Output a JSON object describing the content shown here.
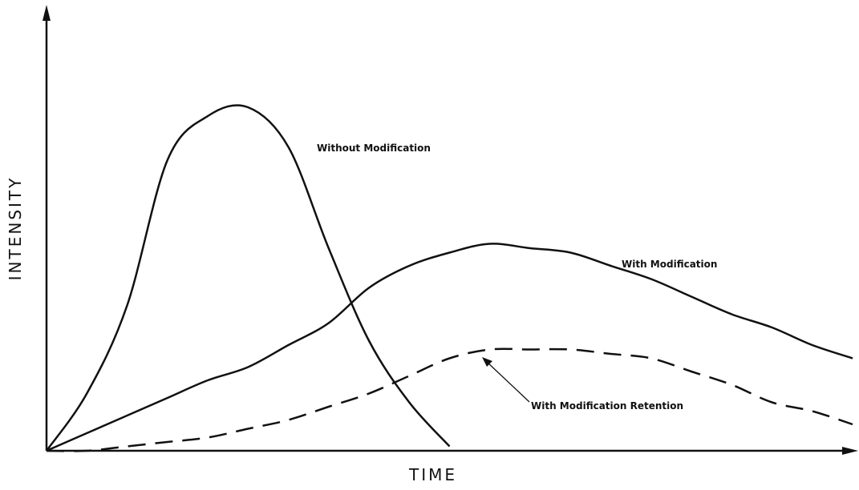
{
  "chart_data": {
    "type": "line",
    "xlabel": "TIME",
    "ylabel": "INTENSITY",
    "x": [
      0,
      5,
      10,
      15,
      20,
      25,
      30,
      35,
      40,
      45,
      50,
      55,
      60,
      65,
      70,
      75,
      80,
      85,
      90,
      95,
      100
    ],
    "xlim": [
      0,
      100
    ],
    "ylim": [
      0,
      100
    ],
    "series": [
      {
        "name": "Without Modification",
        "color": "#111111",
        "dashed": false,
        "values": [
          0,
          13,
          33,
          66,
          76,
          78,
          69,
          46,
          25,
          11,
          1,
          null,
          null,
          null,
          null,
          null,
          null,
          null,
          null,
          null,
          null
        ]
      },
      {
        "name": "With Modification",
        "color": "#111111",
        "dashed": false,
        "values": [
          0,
          4,
          8,
          12,
          16,
          19,
          24,
          29,
          37,
          42,
          45,
          47,
          46,
          45,
          42,
          39,
          35,
          31,
          28,
          24,
          21
        ]
      },
      {
        "name": "With Modification Retention",
        "color": "#111111",
        "dashed": true,
        "values": [
          0,
          0,
          1,
          2,
          3,
          5,
          7,
          10,
          13,
          17,
          21,
          23,
          23,
          23,
          22,
          21,
          18,
          15,
          11,
          9,
          6
        ]
      }
    ]
  }
}
